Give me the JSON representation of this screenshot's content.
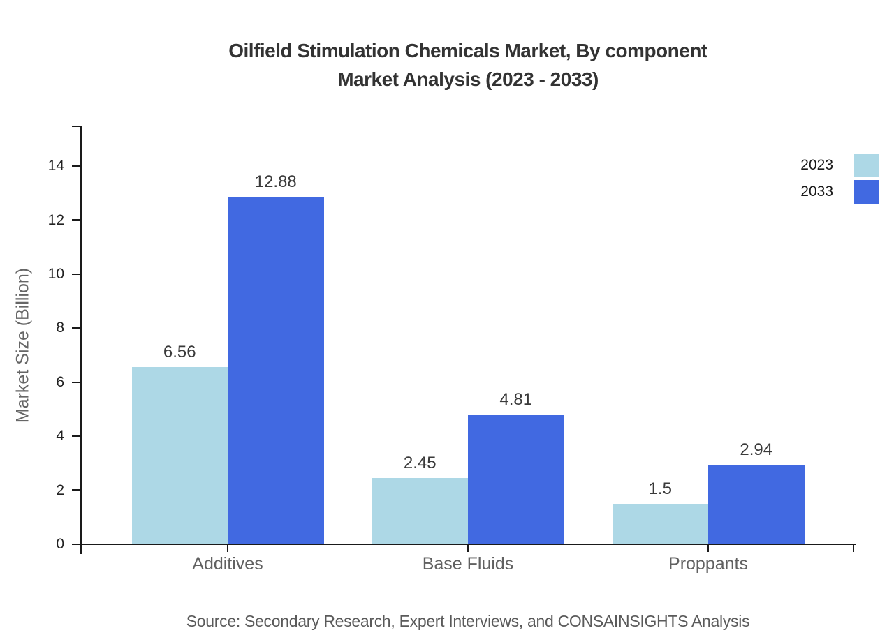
{
  "chart_data": {
    "type": "bar",
    "title": "Oilfield Stimulation Chemicals Market, By component Market Analysis (2023 - 2033)",
    "title_lines": {
      "line1": "Oilfield Stimulation Chemicals Market, By component",
      "line2": "Market Analysis (2023 - 2033)"
    },
    "xlabel": "",
    "ylabel": "Market Size (Billion)",
    "categories": [
      "Additives",
      "Base Fluids",
      "Proppants"
    ],
    "series": [
      {
        "name": "2023",
        "color": "#ADD8E6",
        "values": [
          6.56,
          2.45,
          1.5
        ]
      },
      {
        "name": "2033",
        "color": "#4169E1",
        "values": [
          12.88,
          4.81,
          2.94
        ]
      }
    ],
    "value_labels": {
      "series_2023": [
        "6.56",
        "2.45",
        "1.5"
      ],
      "series_2033": [
        "12.88",
        "4.81",
        "2.94"
      ]
    },
    "yticks": [
      0,
      2,
      4,
      6,
      8,
      10,
      12,
      14
    ],
    "ylim": [
      0,
      15.5
    ],
    "grid": false,
    "legend_position": "top-right",
    "axis_color": "#1a1a1a",
    "source": "Source: Secondary Research, Expert Interviews, and CONSAINSIGHTS Analysis"
  }
}
